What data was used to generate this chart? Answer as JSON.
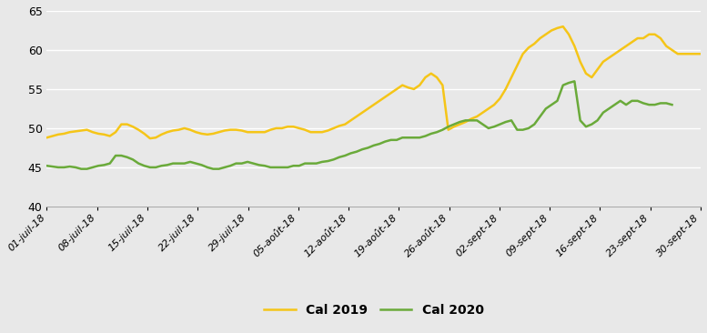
{
  "title": "",
  "ylim": [
    40,
    65
  ],
  "yticks": [
    40,
    45,
    50,
    55,
    60,
    65
  ],
  "fig_background": "#e8e8e8",
  "plot_background": "#e8e8e8",
  "grid_color": "#ffffff",
  "x_labels": [
    "01-juil-18",
    "08-juil-18",
    "15-juil-18",
    "22-juil-18",
    "29-juil-18",
    "05-août-18",
    "12-août-18",
    "19-août-18",
    "26-août-18",
    "02-sept-18",
    "09-sept-18",
    "16-sept-18",
    "23-sept-18",
    "30-sept-18"
  ],
  "cal2019_color": "#f5c518",
  "cal2020_color": "#6aaa3a",
  "legend_fontsize": 10,
  "cal2019": [
    48.8,
    49.0,
    49.2,
    49.3,
    49.5,
    49.6,
    49.7,
    49.8,
    49.5,
    49.3,
    49.2,
    49.0,
    49.5,
    50.5,
    50.5,
    50.2,
    49.8,
    49.3,
    48.7,
    48.8,
    49.2,
    49.5,
    49.7,
    49.8,
    50.0,
    49.8,
    49.5,
    49.3,
    49.2,
    49.3,
    49.5,
    49.7,
    49.8,
    49.8,
    49.7,
    49.5,
    49.5,
    49.5,
    49.5,
    49.8,
    50.0,
    50.0,
    50.2,
    50.2,
    50.0,
    49.8,
    49.5,
    49.5,
    49.5,
    49.7,
    50.0,
    50.3,
    50.5,
    51.0,
    51.5,
    52.0,
    52.5,
    53.0,
    53.5,
    54.0,
    54.5,
    55.0,
    55.5,
    55.2,
    55.0,
    55.5,
    56.5,
    57.0,
    56.5,
    55.5,
    49.8,
    50.2,
    50.5,
    50.8,
    51.2,
    51.5,
    52.0,
    52.5,
    53.0,
    53.8,
    55.0,
    56.5,
    58.0,
    59.5,
    60.3,
    60.8,
    61.5,
    62.0,
    62.5,
    62.8,
    63.0,
    62.0,
    60.5,
    58.5,
    57.0,
    56.5,
    57.5,
    58.5,
    59.0,
    59.5,
    60.0,
    60.5,
    61.0,
    61.5,
    61.5,
    62.0,
    62.0,
    61.5,
    60.5,
    60.0,
    59.5,
    59.5,
    59.5,
    59.5,
    59.5
  ],
  "cal2020": [
    45.2,
    45.1,
    45.0,
    45.0,
    45.1,
    45.0,
    44.8,
    44.8,
    45.0,
    45.2,
    45.3,
    45.5,
    46.5,
    46.5,
    46.3,
    46.0,
    45.5,
    45.2,
    45.0,
    45.0,
    45.2,
    45.3,
    45.5,
    45.5,
    45.5,
    45.7,
    45.5,
    45.3,
    45.0,
    44.8,
    44.8,
    45.0,
    45.2,
    45.5,
    45.5,
    45.7,
    45.5,
    45.3,
    45.2,
    45.0,
    45.0,
    45.0,
    45.0,
    45.2,
    45.2,
    45.5,
    45.5,
    45.5,
    45.7,
    45.8,
    46.0,
    46.3,
    46.5,
    46.8,
    47.0,
    47.3,
    47.5,
    47.8,
    48.0,
    48.3,
    48.5,
    48.5,
    48.8,
    48.8,
    48.8,
    48.8,
    49.0,
    49.3,
    49.5,
    49.8,
    50.2,
    50.5,
    50.8,
    51.0,
    51.0,
    51.0,
    50.5,
    50.0,
    50.2,
    50.5,
    50.8,
    51.0,
    49.8,
    49.8,
    50.0,
    50.5,
    51.5,
    52.5,
    53.0,
    53.5,
    55.5,
    55.8,
    56.0,
    51.0,
    50.2,
    50.5,
    51.0,
    52.0,
    52.5,
    53.0,
    53.5,
    53.0,
    53.5,
    53.5,
    53.2,
    53.0,
    53.0,
    53.2,
    53.2,
    53.0
  ]
}
